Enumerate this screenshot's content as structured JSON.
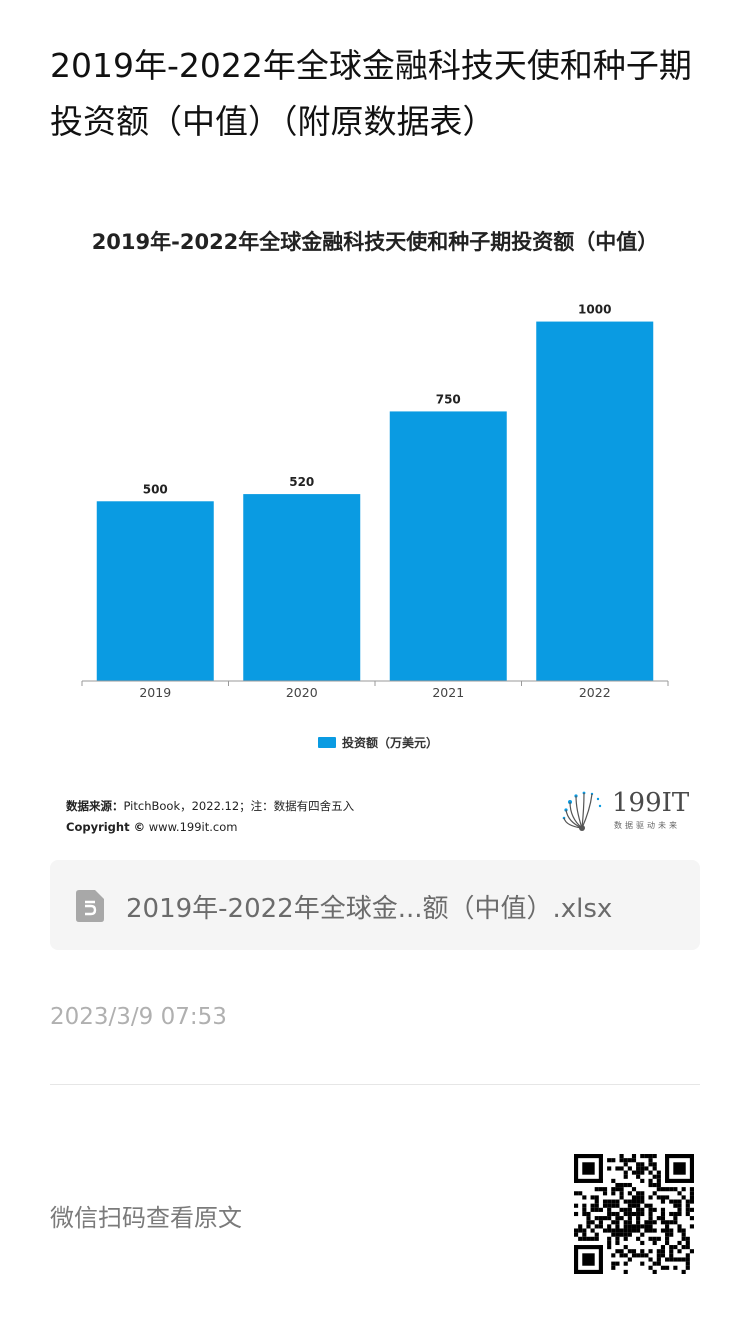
{
  "page_title": "2019年-2022年全球金融科技天使和种子期投资额（中值）（附原数据表）",
  "chart_data": {
    "type": "bar",
    "title": "2019年-2022年全球金融科技天使和种子期投资额（中值）",
    "categories": [
      "2019",
      "2020",
      "2021",
      "2022"
    ],
    "series": [
      {
        "name": "投资额（万美元）",
        "values": [
          500,
          520,
          750,
          1000
        ]
      }
    ],
    "data_labels": [
      "500",
      "520",
      "750",
      "1000"
    ],
    "ylim": [
      0,
      1060
    ],
    "xlabel": "",
    "ylabel": "",
    "grid": false,
    "legend_position": "bottom",
    "bar_color": "#0a9be2"
  },
  "source": {
    "label": "数据来源：",
    "text": "PitchBook，2022.12；注：数据有四舍五入",
    "copyright_label": "Copyright ©",
    "copyright_url": "www.199it.com"
  },
  "brand": {
    "name": "199IT",
    "tagline": "数据驱动未来"
  },
  "attachment": {
    "filename": "2019年-2022年全球金...额（中值）.xlsx",
    "icon": "spreadsheet-file-icon"
  },
  "timestamp": "2023/3/9 07:53",
  "qr_hint": "微信扫码查看原文",
  "colors": {
    "accent": "#0a9be2"
  }
}
